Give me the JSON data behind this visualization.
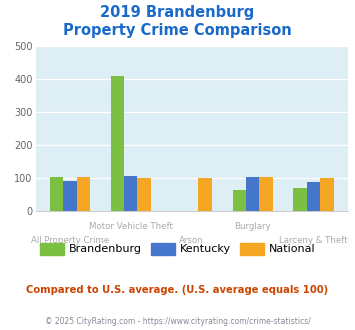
{
  "title_line1": "2019 Brandenburg",
  "title_line2": "Property Crime Comparison",
  "title_color": "#1a6acc",
  "categories": [
    "All Property Crime",
    "Motor Vehicle Theft",
    "Arson",
    "Burglary",
    "Larceny & Theft"
  ],
  "series": {
    "Brandenburg": {
      "color": "#7bc043",
      "values": [
        103,
        410,
        null,
        63,
        70
      ]
    },
    "Kentucky": {
      "color": "#4477cc",
      "values": [
        92,
        107,
        null,
        103,
        88
      ]
    },
    "National": {
      "color": "#f5a623",
      "values": [
        103,
        100,
        102,
        103,
        102
      ]
    }
  },
  "ylim": [
    0,
    500
  ],
  "yticks": [
    0,
    100,
    200,
    300,
    400,
    500
  ],
  "plot_bg_color": "#ddeef5",
  "grid_color": "#ffffff",
  "footer_text": "Compared to U.S. average. (U.S. average equals 100)",
  "footer_color": "#cc4400",
  "copyright_text": "© 2025 CityRating.com - https://www.cityrating.com/crime-statistics/",
  "copyright_color": "#888899",
  "legend_labels": [
    "Brandenburg",
    "Kentucky",
    "National"
  ],
  "xlabel_color": "#aaaaaa",
  "bar_width": 0.22
}
